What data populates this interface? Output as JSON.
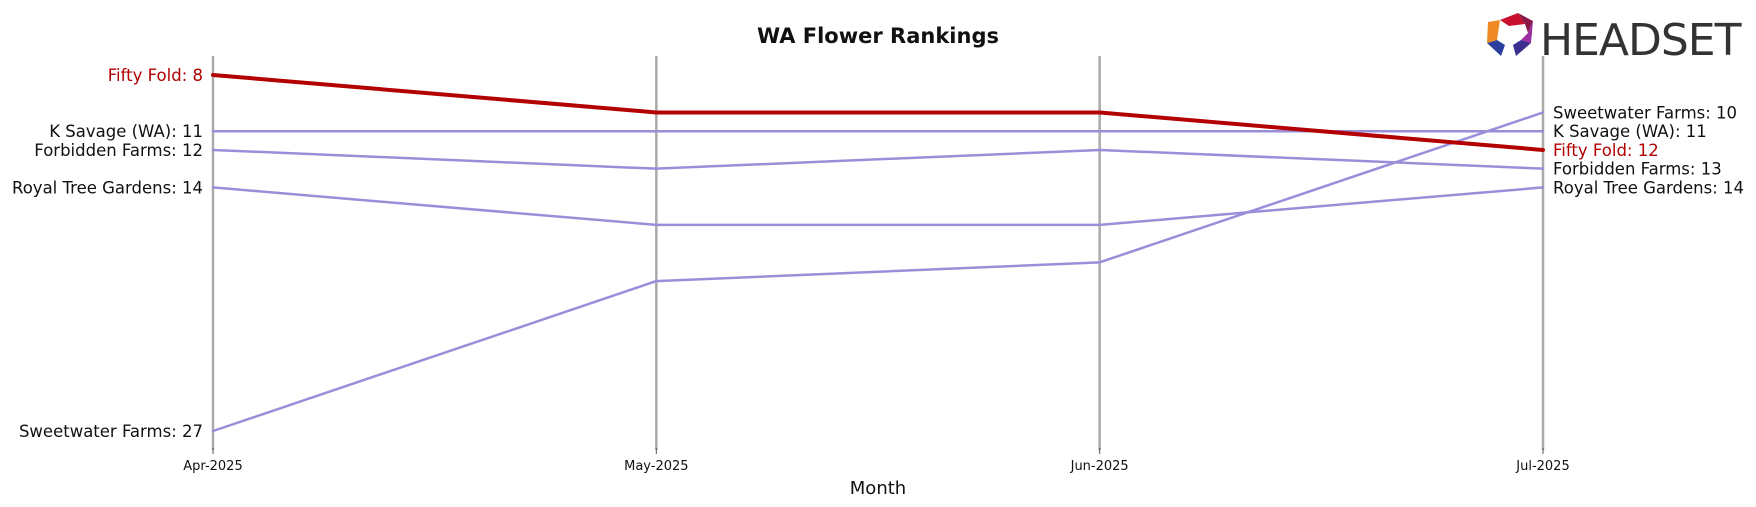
{
  "chart_data": {
    "type": "line",
    "title": "WA Flower Rankings",
    "xlabel": "Month",
    "ylabel": "",
    "x": [
      "Apr-2025",
      "May-2025",
      "Jun-2025",
      "Jul-2025"
    ],
    "y_inverted": true,
    "ylim": [
      7,
      28
    ],
    "grid": "vertical lines at each month",
    "highlight_color": "#b30000",
    "base_color": "#9b8ed9",
    "label_color": "#111111",
    "series": [
      {
        "name": "Sweetwater Farms",
        "values": [
          27,
          19,
          18,
          10
        ],
        "highlight": false
      },
      {
        "name": "Royal Tree Gardens",
        "values": [
          14,
          16,
          16,
          14
        ],
        "highlight": false
      },
      {
        "name": "Forbidden Farms",
        "values": [
          12,
          13,
          12,
          13
        ],
        "highlight": false
      },
      {
        "name": "K Savage (WA)",
        "values": [
          11,
          11,
          11,
          11
        ],
        "highlight": false
      },
      {
        "name": "Fifty Fold",
        "values": [
          8,
          10,
          10,
          12
        ],
        "highlight": true
      }
    ],
    "start_labels": [
      "Fifty Fold: 8",
      "K Savage (WA): 11",
      "Forbidden Farms: 12",
      "Royal Tree Gardens: 14",
      "Sweetwater Farms: 27"
    ],
    "end_labels": [
      "Sweetwater Farms: 10",
      "K Savage (WA): 11",
      "Fifty Fold: 12",
      "Forbidden Farms: 13",
      "Royal Tree Gardens: 14"
    ]
  },
  "logo": {
    "text": "HEADSET",
    "icon": "headset-hexagon-logo-icon"
  }
}
